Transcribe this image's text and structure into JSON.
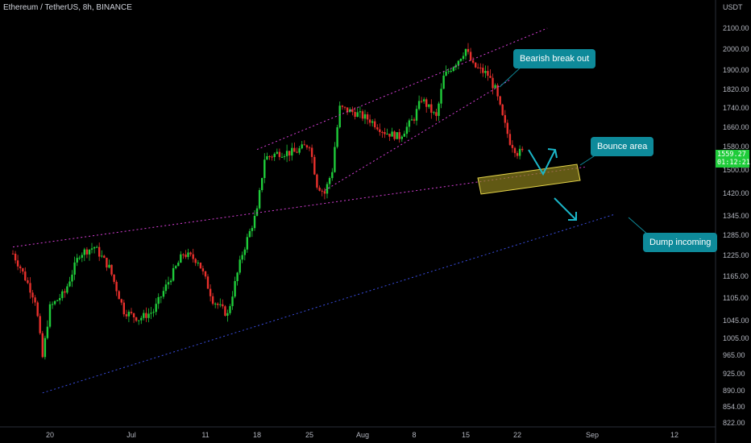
{
  "header": {
    "title": "Ethereum / TetherUS, 8h, BINANCE"
  },
  "axis": {
    "currency": "USDT",
    "y_ticks": [
      "2100.00",
      "2000.00",
      "1900.00",
      "1820.00",
      "1740.00",
      "1660.00",
      "1580.00",
      "1500.00",
      "1420.00",
      "1345.00",
      "1285.00",
      "1225.00",
      "1165.00",
      "1105.00",
      "1045.00",
      "1005.00",
      "965.00",
      "925.00",
      "890.00",
      "854.00",
      "822.00"
    ],
    "x_ticks": [
      "20",
      "Jul",
      "11",
      "18",
      "25",
      "Aug",
      "8",
      "15",
      "22",
      "Sep",
      "12"
    ]
  },
  "price_badge": {
    "price": "1559.27",
    "countdown": "01:12:21"
  },
  "annotations": {
    "bearish": "Bearish break out",
    "bounce": "Bounce area",
    "dump": "Dump incoming"
  },
  "colors": {
    "up": "#1fcc3a",
    "down": "#e8302c",
    "channel": "#d63fd6",
    "support": "#3a4de0",
    "zone_fill": "#8a7f1c",
    "zone_stroke": "#e6d54a",
    "arrow": "#1bb6c8",
    "callout": "#0e8a9a"
  },
  "chart_data": {
    "type": "candlestick",
    "symbol": "ETHUSDT",
    "timeframe": "8h",
    "ylim": [
      822,
      2100
    ],
    "path": [
      {
        "date": "Jun 14",
        "price": 1230
      },
      {
        "date": "Jun 15",
        "price": 1190
      },
      {
        "date": "Jun 17",
        "price": 1100
      },
      {
        "date": "Jun 18",
        "price": 960
      },
      {
        "date": "Jun 19",
        "price": 1080
      },
      {
        "date": "Jun 21",
        "price": 1120
      },
      {
        "date": "Jun 23",
        "price": 1230
      },
      {
        "date": "Jun 25",
        "price": 1250
      },
      {
        "date": "Jun 27",
        "price": 1190
      },
      {
        "date": "Jun 29",
        "price": 1070
      },
      {
        "date": "Jul 1",
        "price": 1050
      },
      {
        "date": "Jul 3",
        "price": 1070
      },
      {
        "date": "Jul 5",
        "price": 1150
      },
      {
        "date": "Jul 7",
        "price": 1230
      },
      {
        "date": "Jul 9",
        "price": 1210
      },
      {
        "date": "Jul 11",
        "price": 1100
      },
      {
        "date": "Jul 13",
        "price": 1060
      },
      {
        "date": "Jul 15",
        "price": 1230
      },
      {
        "date": "Jul 17",
        "price": 1360
      },
      {
        "date": "Jul 18",
        "price": 1540
      },
      {
        "date": "Jul 20",
        "price": 1560
      },
      {
        "date": "Jul 22",
        "price": 1560
      },
      {
        "date": "Jul 24",
        "price": 1590
      },
      {
        "date": "Jul 25",
        "price": 1450
      },
      {
        "date": "Jul 26",
        "price": 1420
      },
      {
        "date": "Jul 27",
        "price": 1500
      },
      {
        "date": "Jul 28",
        "price": 1740
      },
      {
        "date": "Jul 30",
        "price": 1720
      },
      {
        "date": "Aug 1",
        "price": 1690
      },
      {
        "date": "Aug 3",
        "price": 1640
      },
      {
        "date": "Aug 5",
        "price": 1620
      },
      {
        "date": "Aug 7",
        "price": 1700
      },
      {
        "date": "Aug 8",
        "price": 1780
      },
      {
        "date": "Aug 10",
        "price": 1700
      },
      {
        "date": "Aug 11",
        "price": 1870
      },
      {
        "date": "Aug 13",
        "price": 1950
      },
      {
        "date": "Aug 14",
        "price": 2000
      },
      {
        "date": "Aug 15",
        "price": 1920
      },
      {
        "date": "Aug 17",
        "price": 1880
      },
      {
        "date": "Aug 18",
        "price": 1820
      },
      {
        "date": "Aug 19",
        "price": 1700
      },
      {
        "date": "Aug 20",
        "price": 1600
      },
      {
        "date": "Aug 21",
        "price": 1560
      },
      {
        "date": "Aug 22",
        "price": 1559.27
      }
    ],
    "trendlines": [
      {
        "name": "channel-upper",
        "from": {
          "date": "Jul 17",
          "price": 1570
        },
        "to": {
          "date": "Aug 25",
          "price": 2100
        }
      },
      {
        "name": "channel-lower",
        "from": {
          "date": "Jul 26",
          "price": 1430
        },
        "to": {
          "date": "Aug 20",
          "price": 1860
        }
      },
      {
        "name": "long-resistance",
        "from": {
          "date": "Jun 14",
          "price": 1250
        },
        "to": {
          "date": "Aug 30",
          "price": 1510
        }
      },
      {
        "name": "long-support",
        "from": {
          "date": "Jun 18",
          "price": 885
        },
        "to": {
          "date": "Sep 3",
          "price": 1350
        }
      }
    ]
  }
}
